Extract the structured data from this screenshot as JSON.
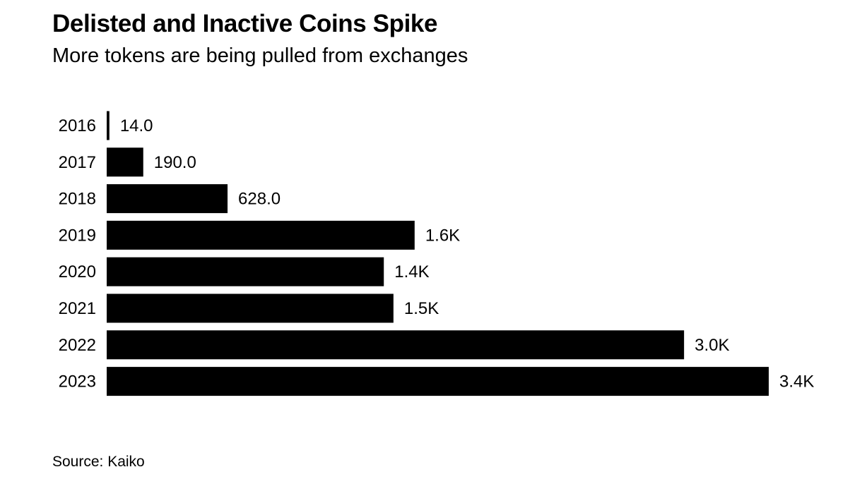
{
  "title": "Delisted and Inactive Coins Spike",
  "subtitle": "More tokens are being pulled from exchanges",
  "source": "Source: Kaiko",
  "colors": {
    "bar": "#000000",
    "background": "#ffffff",
    "text": "#000000"
  },
  "chart_data": {
    "type": "bar",
    "orientation": "horizontal",
    "categories": [
      "2016",
      "2017",
      "2018",
      "2019",
      "2020",
      "2021",
      "2022",
      "2023"
    ],
    "values": [
      14,
      190,
      628,
      1600,
      1440,
      1490,
      3000,
      3440
    ],
    "value_labels": [
      "14.0",
      "190.0",
      "628.0",
      "1.6K",
      "1.4K",
      "1.5K",
      "3.0K",
      "3.4K"
    ],
    "title": "Delisted and Inactive Coins Spike",
    "subtitle": "More tokens are being pulled from exchanges",
    "xlim": [
      0,
      3440
    ],
    "grid": false,
    "legend": "none"
  }
}
